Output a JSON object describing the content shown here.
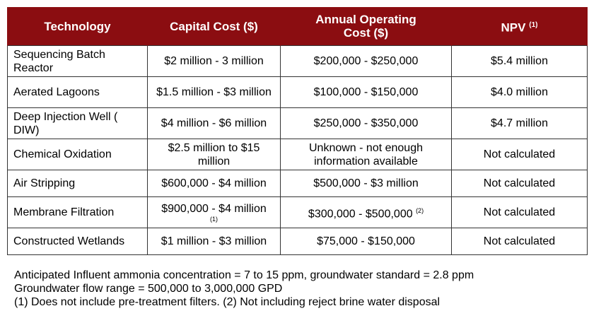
{
  "header": {
    "technology": "Technology",
    "capital_cost": "Capital Cost ($)",
    "annual_operating_line1": "Annual Operating",
    "annual_operating_line2": "Cost ($)",
    "npv": "NPV",
    "npv_note": "(1)"
  },
  "rows": [
    {
      "technology": "Sequencing Batch Reactor",
      "capital": "$2 million - 3 million",
      "capital_note": "",
      "operating": "$200,000 - $250,000",
      "operating_note": "",
      "npv": "$5.4 million"
    },
    {
      "technology": "Aerated Lagoons",
      "capital": "$1.5 million - $3 million",
      "capital_note": "",
      "operating": "$100,000 - $150,000",
      "operating_note": "",
      "npv": "$4.0 million"
    },
    {
      "technology": "Deep Injection Well ( DIW)",
      "capital": "$4 million - $6 million",
      "capital_note": "",
      "operating": "$250,000 - $350,000",
      "operating_note": "",
      "npv": "$4.7 million"
    },
    {
      "technology": "Chemical Oxidation",
      "capital": "$2.5 million to $15 million",
      "capital_note": "",
      "operating": "Unknown - not enough information available",
      "operating_note": "",
      "npv": "Not calculated"
    },
    {
      "technology": "Air Stripping",
      "capital": "$600,000 - $4 million",
      "capital_note": "",
      "operating": "$500,000 - $3 million",
      "operating_note": "",
      "npv": "Not calculated"
    },
    {
      "technology": "Membrane Filtration",
      "capital": "$900,000 - $4 million",
      "capital_note": "(1)",
      "operating": "$300,000 - $500,000",
      "operating_note": "(2)",
      "npv": "Not calculated"
    },
    {
      "technology": "Constructed Wetlands",
      "capital": "$1 million - $3 million",
      "capital_note": "",
      "operating": "$75,000 - $150,000",
      "operating_note": "",
      "npv": "Not calculated"
    }
  ],
  "footer": {
    "line1": "Anticipated Influent ammonia concentration = 7 to 15 ppm, groundwater standard = 2.8 ppm",
    "line2": "Groundwater flow range = 500,000 to 3,000,000 GPD",
    "line3": "(1)  Does not include pre-treatment filters.  (2) Not including reject brine water disposal"
  },
  "colors": {
    "header_background": "#8b0d11",
    "header_text": "#ffffff",
    "border": "#333333"
  }
}
